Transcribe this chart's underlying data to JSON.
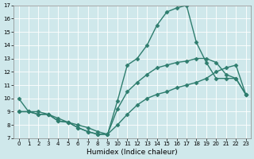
{
  "lines": [
    {
      "x": [
        0,
        1,
        2,
        3,
        4,
        5,
        6,
        7,
        8,
        9,
        10,
        11,
        12,
        13,
        14,
        15,
        16,
        17,
        18,
        19,
        20,
        21,
        22,
        23
      ],
      "y": [
        10,
        9,
        9,
        8.8,
        8.5,
        8.2,
        7.8,
        7.5,
        7.3,
        7.3,
        9.8,
        12.5,
        13.0,
        14.0,
        15.5,
        16.5,
        16.8,
        17.0,
        14.2,
        12.7,
        11.5,
        11.5,
        11.5,
        10.3
      ],
      "color": "#2e7d6e",
      "marker": "D",
      "markersize": 2.5,
      "linewidth": 1.0
    },
    {
      "x": [
        0,
        1,
        2,
        3,
        4,
        5,
        6,
        7,
        8,
        9,
        10,
        11,
        12,
        13,
        14,
        15,
        16,
        17,
        18,
        19,
        20,
        21,
        22,
        23
      ],
      "y": [
        9,
        9,
        8.8,
        8.8,
        8.3,
        8.2,
        7.8,
        7.5,
        7.3,
        7.3,
        9.2,
        10.5,
        11.2,
        11.8,
        12.3,
        12.5,
        12.7,
        12.8,
        13.0,
        13.0,
        12.7,
        11.8,
        11.5,
        10.3
      ],
      "color": "#2e7d6e",
      "marker": "D",
      "markersize": 2.5,
      "linewidth": 1.0
    },
    {
      "x": [
        0,
        1,
        2,
        3,
        4,
        5,
        6,
        7,
        8,
        9,
        10,
        11,
        12,
        13,
        14,
        15,
        16,
        17,
        18,
        19,
        20,
        21,
        22,
        23
      ],
      "y": [
        9,
        9,
        8.8,
        8.8,
        8.3,
        8.2,
        8.0,
        7.8,
        7.5,
        7.3,
        8.0,
        8.8,
        9.5,
        10.0,
        10.3,
        10.5,
        10.8,
        11.0,
        11.2,
        11.5,
        12.0,
        12.3,
        12.5,
        10.3
      ],
      "color": "#2e7d6e",
      "marker": "D",
      "markersize": 2.5,
      "linewidth": 1.0
    }
  ],
  "xlabel": "Humidex (Indice chaleur)",
  "xlim": [
    -0.5,
    23.5
  ],
  "ylim": [
    7,
    17
  ],
  "yticks": [
    7,
    8,
    9,
    10,
    11,
    12,
    13,
    14,
    15,
    16,
    17
  ],
  "xticks": [
    0,
    1,
    2,
    3,
    4,
    5,
    6,
    7,
    8,
    9,
    10,
    11,
    12,
    13,
    14,
    15,
    16,
    17,
    18,
    19,
    20,
    21,
    22,
    23
  ],
  "background_color": "#cfe8eb",
  "grid_color": "#ffffff",
  "tick_fontsize": 5,
  "xlabel_fontsize": 6.5,
  "spine_color": "#888888"
}
